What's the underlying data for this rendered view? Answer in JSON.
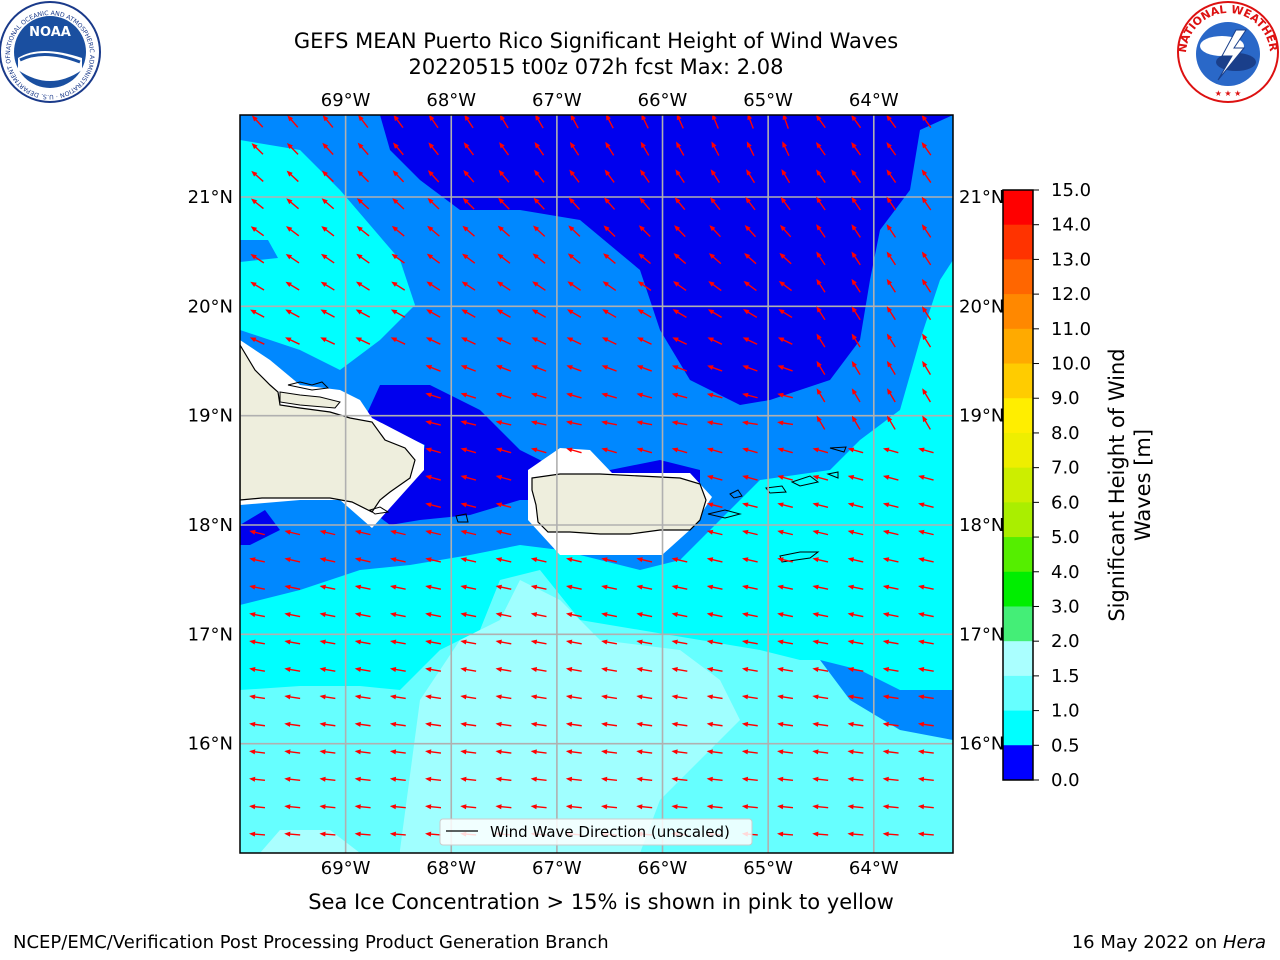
{
  "title": {
    "line1": "GEFS MEAN Puerto Rico Significant Height of Wind Waves",
    "line2": "20220515 t00z 072h fcst   Max: 2.08"
  },
  "map": {
    "lon_ticks": [
      "69°W",
      "68°W",
      "67°W",
      "66°W",
      "65°W",
      "64°W"
    ],
    "lat_ticks": [
      "21°N",
      "20°N",
      "19°N",
      "18°N",
      "17°N",
      "16°N"
    ],
    "lon_values": [
      -69,
      -68,
      -67,
      -66,
      -65,
      -64
    ],
    "lat_values": [
      21,
      20,
      19,
      18,
      17,
      16
    ],
    "lon_range": [
      -70.0,
      -63.25
    ],
    "lat_range": [
      15.0,
      21.75
    ],
    "legend_label": "Wind Wave Direction (unscaled)",
    "arrow_color": "#ff0000",
    "land_color": "#eeeedd",
    "no_data_color": "#ffffff"
  },
  "colorbar": {
    "label": "Significant Height of Wind Waves [m]",
    "ticks": [
      "15.0",
      "14.0",
      "13.0",
      "12.0",
      "11.0",
      "10.0",
      "9.0",
      "8.0",
      "7.0",
      "6.0",
      "5.0",
      "4.0",
      "3.0",
      "2.0",
      "1.5",
      "1.0",
      "0.5",
      "0.0"
    ],
    "colors": [
      "#ff0000",
      "#ff3300",
      "#ff6600",
      "#ff8800",
      "#ffaa00",
      "#ffcc00",
      "#ffee00",
      "#eeee00",
      "#ccee00",
      "#aaee00",
      "#55ee00",
      "#00ee00",
      "#44ee77",
      "#aaffff",
      "#66ffff",
      "#00ffff",
      "#0088ff",
      "#0000ff"
    ]
  },
  "note": "Sea Ice Concentration > 15% is shown in pink to yellow",
  "footer": {
    "left": "NCEP/EMC/Verification Post Processing Product Generation Branch",
    "right_prefix": "16 May 2022 on ",
    "right_italic": "Hera"
  },
  "logos": {
    "left_text": "NOAA",
    "left_ring": "NATIONAL OCEANIC AND ATMOSPHERIC ADMINISTRATION · U.S. DEPARTMENT OF COMMERCE",
    "right_ring": "NATIONAL WEATHER SERVICE"
  }
}
